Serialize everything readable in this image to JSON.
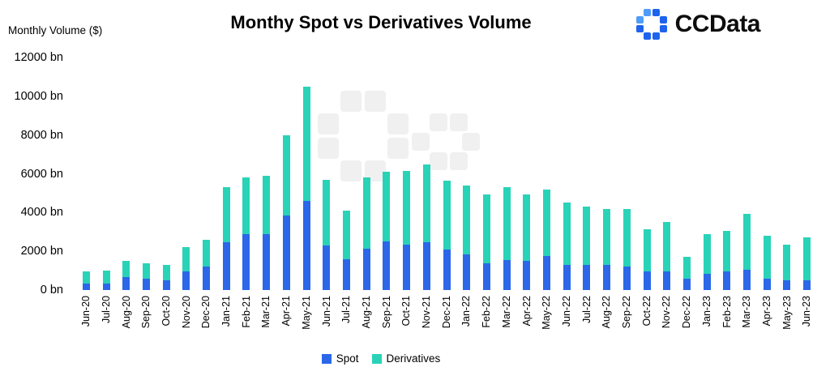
{
  "header": {
    "brand": "CCData"
  },
  "chart_data": {
    "type": "bar",
    "stacked": true,
    "title": "Monthy Spot vs Derivatives Volume",
    "ylabel": "Monthly Volume ($)",
    "xlabel": "",
    "ylim": [
      0,
      12000
    ],
    "grid": false,
    "legend_position": "bottom",
    "y_ticks": [
      {
        "value": 0,
        "label": "0 bn"
      },
      {
        "value": 2000,
        "label": "2000 bn"
      },
      {
        "value": 4000,
        "label": "4000 bn"
      },
      {
        "value": 6000,
        "label": "6000 bn"
      },
      {
        "value": 8000,
        "label": "8000 bn"
      },
      {
        "value": 10000,
        "label": "10000 bn"
      },
      {
        "value": 12000,
        "label": "12000 bn"
      }
    ],
    "categories": [
      "Jun-20",
      "Jul-20",
      "Aug-20",
      "Sep-20",
      "Oct-20",
      "Nov-20",
      "Dec-20",
      "Jan-21",
      "Feb-21",
      "Mar-21",
      "Apr-21",
      "May-21",
      "Jun-21",
      "Jul-21",
      "Aug-21",
      "Sep-21",
      "Oct-21",
      "Nov-21",
      "Dec-21",
      "Jan-22",
      "Feb-22",
      "Mar-22",
      "Apr-22",
      "May-22",
      "Jun-22",
      "Jul-22",
      "Aug-22",
      "Sep-22",
      "Oct-22",
      "Nov-22",
      "Dec-22",
      "Jan-23",
      "Feb-23",
      "Mar-23",
      "Apr-23",
      "May-23",
      "Jun-23"
    ],
    "series": [
      {
        "name": "Spot",
        "color": "#2b67e8",
        "values": [
          350,
          350,
          650,
          600,
          500,
          950,
          1200,
          2450,
          2900,
          2900,
          3850,
          4600,
          2300,
          1600,
          2150,
          2500,
          2350,
          2450,
          2100,
          1850,
          1400,
          1550,
          1500,
          1750,
          1300,
          1300,
          1300,
          1200,
          950,
          950,
          600,
          850,
          950,
          1050,
          600,
          500,
          500
        ]
      },
      {
        "name": "Derivatives",
        "color": "#29d3b7",
        "values": [
          600,
          650,
          850,
          800,
          800,
          1250,
          1400,
          2850,
          2900,
          3000,
          4150,
          5900,
          3400,
          2500,
          3650,
          3600,
          3800,
          4050,
          3550,
          3550,
          3550,
          3750,
          3450,
          3450,
          3200,
          3000,
          2900,
          3000,
          2200,
          2550,
          1100,
          2050,
          2100,
          2900,
          2200,
          1850,
          2200
        ]
      }
    ]
  },
  "colors": {
    "logo_blue_dark": "#1d63ed",
    "logo_blue_light": "#4f9cf9",
    "watermark_gray": "#f0f0f0",
    "text": "#000000"
  }
}
